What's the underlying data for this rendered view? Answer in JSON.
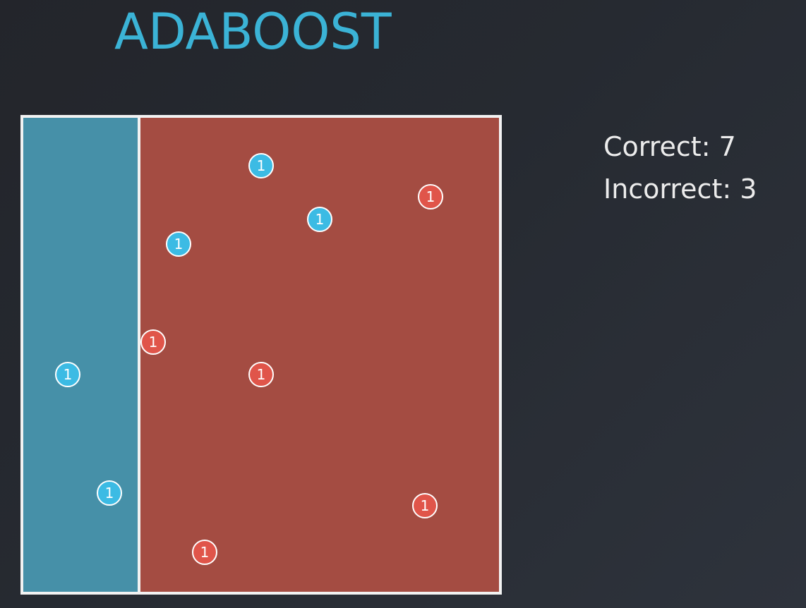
{
  "title": "ADABOOST",
  "stats": {
    "correct_label": "Correct:",
    "correct_value": "7",
    "incorrect_label": "Incorrect:",
    "incorrect_value": "3"
  },
  "colors": {
    "title": "#3bb3d6",
    "left_region": "#4690a8",
    "right_region": "#a44c42",
    "blue_point": "#3cbbe4",
    "red_point": "#e0554a",
    "border": "#f2f2f2"
  },
  "points": [
    {
      "color": "blue",
      "weight": "1"
    },
    {
      "color": "red",
      "weight": "1"
    },
    {
      "color": "blue",
      "weight": "1"
    },
    {
      "color": "blue",
      "weight": "1"
    },
    {
      "color": "red",
      "weight": "1"
    },
    {
      "color": "blue",
      "weight": "1"
    },
    {
      "color": "red",
      "weight": "1"
    },
    {
      "color": "blue",
      "weight": "1"
    },
    {
      "color": "red",
      "weight": "1"
    },
    {
      "color": "red",
      "weight": "1"
    }
  ]
}
